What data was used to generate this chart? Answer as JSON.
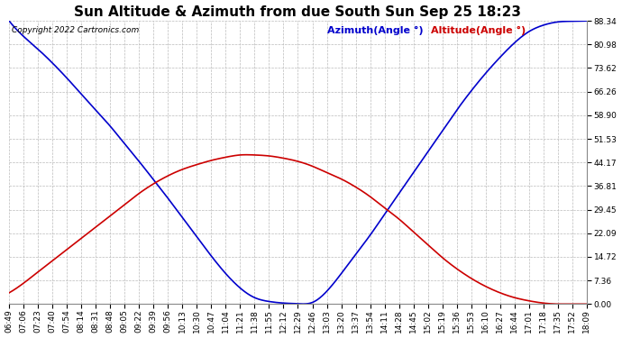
{
  "title": "Sun Altitude & Azimuth from due South Sun Sep 25 18:23",
  "copyright": "Copyright 2022 Cartronics.com",
  "legend_azimuth": "Azimuth(Angle °)",
  "legend_altitude": "Altitude(Angle °)",
  "yticks": [
    0.0,
    7.36,
    14.72,
    22.09,
    29.45,
    36.81,
    44.17,
    51.53,
    58.9,
    66.26,
    73.62,
    80.98,
    88.34
  ],
  "x_times": [
    "06:49",
    "07:06",
    "07:23",
    "07:40",
    "07:54",
    "08:14",
    "08:31",
    "08:48",
    "09:05",
    "09:22",
    "09:39",
    "09:56",
    "10:13",
    "10:30",
    "10:47",
    "11:04",
    "11:21",
    "11:38",
    "11:55",
    "12:12",
    "12:29",
    "12:46",
    "13:03",
    "13:20",
    "13:37",
    "13:54",
    "14:11",
    "14:28",
    "14:45",
    "15:02",
    "15:19",
    "15:36",
    "15:53",
    "16:10",
    "16:27",
    "16:44",
    "17:01",
    "17:18",
    "17:35",
    "17:52",
    "18:09"
  ],
  "azimuth_color": "#0000cc",
  "altitude_color": "#cc0000",
  "grid_color": "#bbbbbb",
  "bg_color": "#ffffff",
  "title_fontsize": 11,
  "tick_fontsize": 6.5,
  "ymax": 88.34,
  "ymin": 0.0,
  "figwidth": 6.9,
  "figheight": 3.75,
  "dpi": 100
}
